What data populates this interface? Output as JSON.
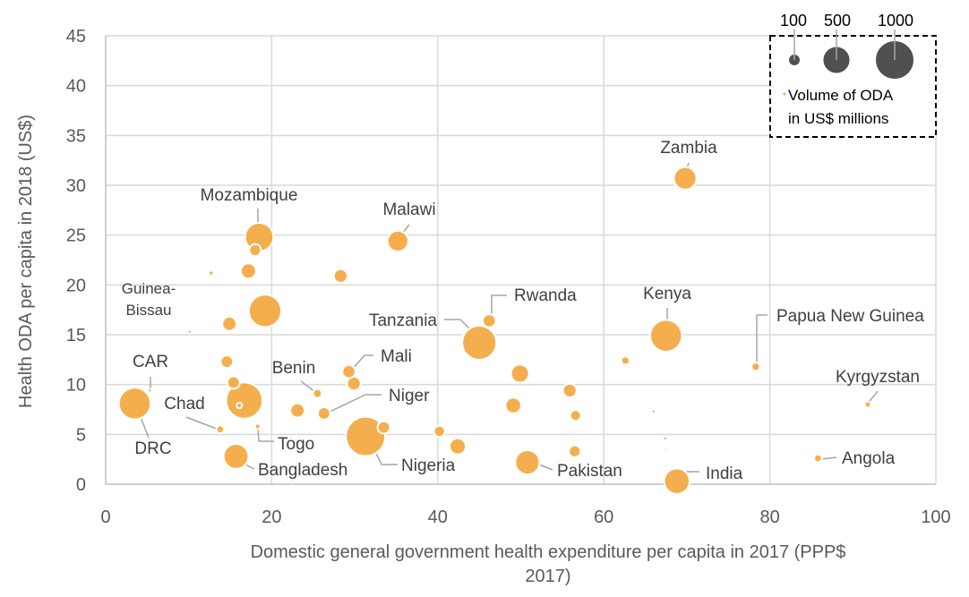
{
  "chart_data": {
    "type": "scatter",
    "bubble": true,
    "xlabel": [
      "Domestic general government health expenditure per capita in 2017 (PPP$",
      "2017)"
    ],
    "ylabel": "Health ODA per capita in 2018 (US$)",
    "xlim": [
      0,
      100
    ],
    "ylim": [
      0,
      45
    ],
    "xticks": [
      0,
      20,
      40,
      60,
      80,
      100
    ],
    "yticks": [
      0,
      5,
      10,
      15,
      20,
      25,
      30,
      35,
      40,
      45
    ],
    "grid": true,
    "colors": {
      "bubble": "#F5AE4E",
      "bubble_stroke": "#ffffff",
      "legend_bubble": "#505050",
      "leader": "#A6A6A6",
      "grid": "#D9D9D9"
    },
    "points": [
      {
        "x": 18.5,
        "y": 24.8,
        "size": 520,
        "label": "Mozambique"
      },
      {
        "x": 35.2,
        "y": 24.4,
        "size": 280,
        "label": "Malawi"
      },
      {
        "x": 69.8,
        "y": 30.7,
        "size": 330,
        "label": "Zambia"
      },
      {
        "x": 46.2,
        "y": 16.4,
        "size": 110,
        "label": "Rwanda"
      },
      {
        "x": 67.5,
        "y": 14.9,
        "size": 650,
        "label": "Kenya"
      },
      {
        "x": 45.0,
        "y": 14.2,
        "size": 750,
        "label": "Tanzania"
      },
      {
        "x": 78.3,
        "y": 11.8,
        "size": 45,
        "label": "Papua New Guinea"
      },
      {
        "x": 91.8,
        "y": 8.0,
        "size": 25,
        "label": "Kyrgyzstan"
      },
      {
        "x": 29.3,
        "y": 11.3,
        "size": 110,
        "label": "Mali"
      },
      {
        "x": 25.5,
        "y": 9.1,
        "size": 50,
        "label": "Benin"
      },
      {
        "x": 26.3,
        "y": 7.1,
        "size": 100,
        "label": "Niger"
      },
      {
        "x": 5.3,
        "y": 9.4,
        "size": 10,
        "label": "CAR"
      },
      {
        "x": 3.5,
        "y": 8.1,
        "size": 650,
        "label": "DRC"
      },
      {
        "x": 13.8,
        "y": 5.5,
        "size": 40,
        "label": "Chad"
      },
      {
        "x": 18.3,
        "y": 5.8,
        "size": 20,
        "label": "Togo"
      },
      {
        "x": 15.7,
        "y": 2.8,
        "size": 400,
        "label": "Bangladesh"
      },
      {
        "x": 31.3,
        "y": 4.8,
        "size": 1000,
        "label": "Nigeria"
      },
      {
        "x": 50.8,
        "y": 2.2,
        "size": 380,
        "label": "Pakistan"
      },
      {
        "x": 68.8,
        "y": 0.3,
        "size": 420,
        "label": "India"
      },
      {
        "x": 85.8,
        "y": 2.6,
        "size": 40,
        "label": "Angola"
      },
      {
        "x": 10.1,
        "y": 15.3,
        "size": 10,
        "label": "Guinea-Bissau"
      },
      {
        "x": 19.2,
        "y": 17.4,
        "size": 680,
        "label": ""
      },
      {
        "x": 17.2,
        "y": 21.4,
        "size": 150,
        "label": ""
      },
      {
        "x": 18.0,
        "y": 23.5,
        "size": 90,
        "label": ""
      },
      {
        "x": 12.7,
        "y": 21.2,
        "size": 15,
        "label": ""
      },
      {
        "x": 28.3,
        "y": 20.9,
        "size": 120,
        "label": ""
      },
      {
        "x": 14.9,
        "y": 16.1,
        "size": 130,
        "label": ""
      },
      {
        "x": 14.6,
        "y": 12.3,
        "size": 100,
        "label": ""
      },
      {
        "x": 15.4,
        "y": 10.2,
        "size": 100,
        "label": ""
      },
      {
        "x": 16.7,
        "y": 8.4,
        "size": 850,
        "label": ""
      },
      {
        "x": 16.1,
        "y": 7.9,
        "size": 20,
        "label": ""
      },
      {
        "x": 23.1,
        "y": 7.4,
        "size": 130,
        "label": ""
      },
      {
        "x": 29.9,
        "y": 10.1,
        "size": 120,
        "label": ""
      },
      {
        "x": 33.5,
        "y": 5.7,
        "size": 100,
        "label": ""
      },
      {
        "x": 40.2,
        "y": 5.3,
        "size": 80,
        "label": ""
      },
      {
        "x": 42.4,
        "y": 3.8,
        "size": 170,
        "label": ""
      },
      {
        "x": 49.9,
        "y": 11.1,
        "size": 210,
        "label": ""
      },
      {
        "x": 49.1,
        "y": 7.9,
        "size": 160,
        "label": ""
      },
      {
        "x": 55.9,
        "y": 9.4,
        "size": 120,
        "label": ""
      },
      {
        "x": 56.6,
        "y": 6.9,
        "size": 75,
        "label": ""
      },
      {
        "x": 56.5,
        "y": 3.3,
        "size": 90,
        "label": ""
      },
      {
        "x": 62.6,
        "y": 12.4,
        "size": 45,
        "label": ""
      },
      {
        "x": 66.0,
        "y": 7.3,
        "size": 10,
        "label": ""
      },
      {
        "x": 67.4,
        "y": 4.6,
        "size": 10,
        "label": ""
      },
      {
        "x": 67.5,
        "y": 3.5,
        "size": 5,
        "label": ""
      },
      {
        "x": 55.2,
        "y": 11.4,
        "size": 3,
        "label": ""
      },
      {
        "x": 22.5,
        "y": 0.3,
        "size": 5,
        "label": ""
      }
    ],
    "legend": {
      "sizes": [
        100,
        500,
        1000
      ],
      "labels": [
        "100",
        "500",
        "1000"
      ],
      "title": [
        "Volume of ODA",
        "in US$ millions"
      ],
      "placement": "top-right"
    }
  }
}
